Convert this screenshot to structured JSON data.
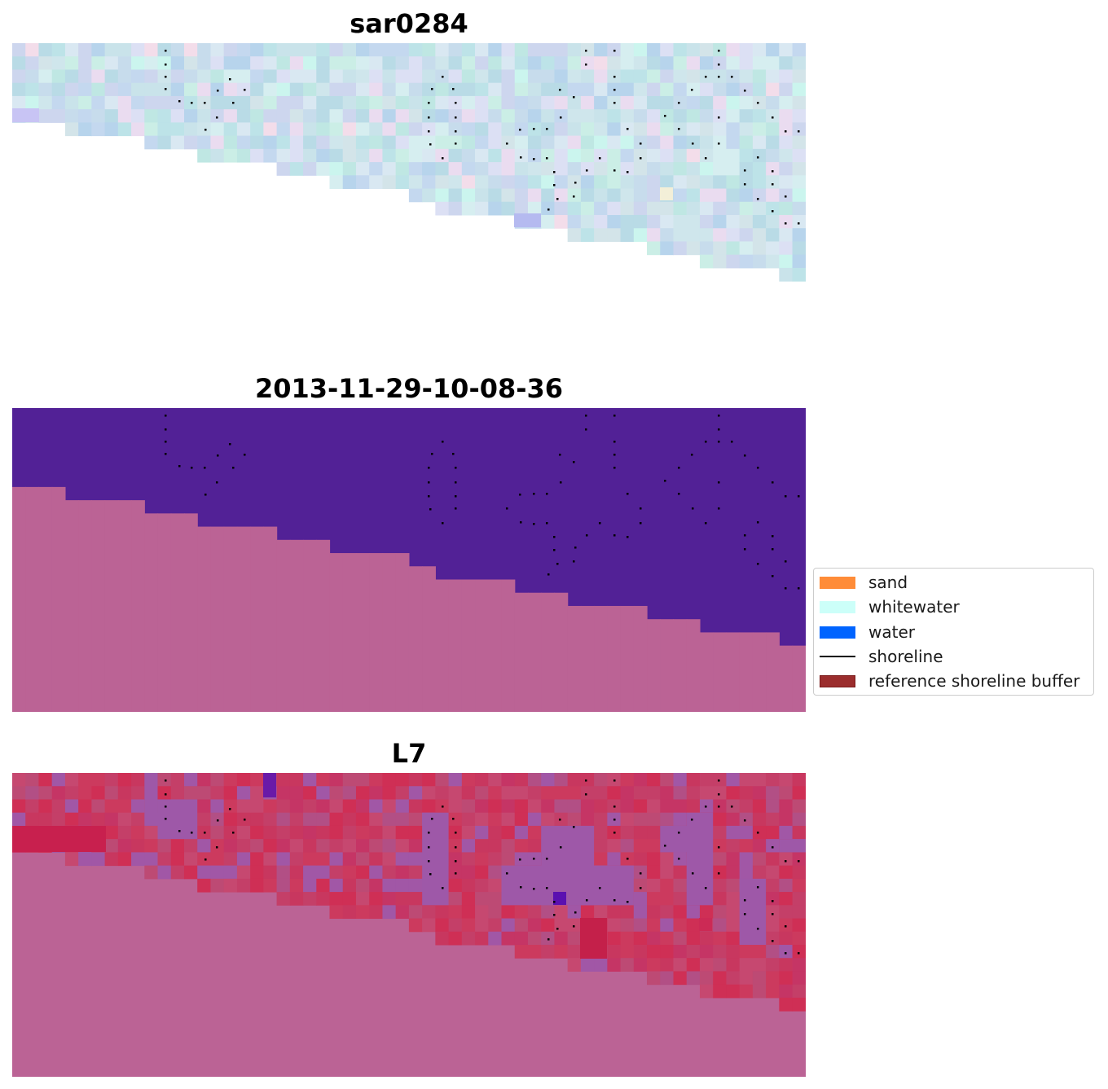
{
  "panels": [
    {
      "title": "sar0284"
    },
    {
      "title": "2013-11-29-10-08-36"
    },
    {
      "title": "L7"
    }
  ],
  "legend": {
    "items": [
      {
        "label": "sand",
        "color": "#ff8c38",
        "kind": "patch"
      },
      {
        "label": "whitewater",
        "color": "#ccfff9",
        "kind": "patch"
      },
      {
        "label": "water",
        "color": "#0064ff",
        "kind": "patch"
      },
      {
        "label": "shoreline",
        "color": "#000000",
        "kind": "line"
      },
      {
        "label": "reference shoreline buffer",
        "color": "#9b2d2d",
        "kind": "patch"
      }
    ]
  },
  "colors": {
    "classified_water": "#522196",
    "classified_land": "#bb6395",
    "l7_land": "#bb6395",
    "l7_red": "#c8375f",
    "l7_purple": "#9e58a8"
  }
}
